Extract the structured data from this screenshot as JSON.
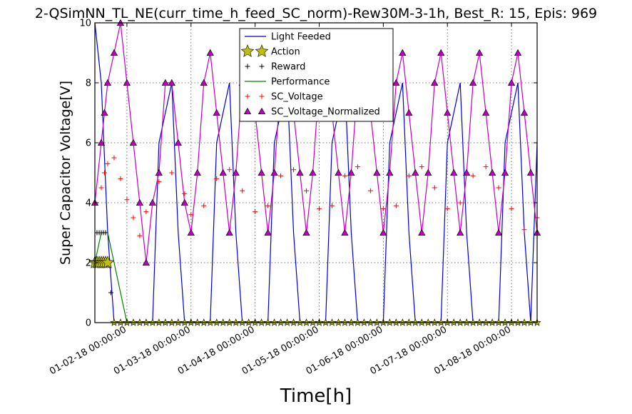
{
  "chart_data": {
    "type": "line",
    "title": "2-QSimNN_TL_NE(curr_time_h_feed_SC_norm)-Rew30M-3-1h, Best_R: 15, Epis: 969",
    "xlabel": "Time[h]",
    "ylabel": "Super Capacitor Voltage[V]",
    "ylim": [
      0,
      10
    ],
    "xlim": [
      0,
      69
    ],
    "yticks": [
      0,
      2,
      4,
      6,
      8,
      10
    ],
    "xticks": [
      {
        "x": 5,
        "label": "01-02-18 00:00:00"
      },
      {
        "x": 15,
        "label": "01-03-18 00:00:00"
      },
      {
        "x": 25,
        "label": "01-04-18 00:00:00"
      },
      {
        "x": 35,
        "label": "01-05-18 00:00:00"
      },
      {
        "x": 45,
        "label": "01-06-18 00:00:00"
      },
      {
        "x": 55,
        "label": "01-07-18 00:00:00"
      },
      {
        "x": 65,
        "label": "01-08-18 00:00:00"
      }
    ],
    "grid": true,
    "legend_position": "top-center",
    "series": [
      {
        "name": "Light Feeded",
        "color": "#0000cc",
        "marker": "none",
        "x": [
          0,
          1,
          2,
          3,
          4,
          5,
          6,
          7,
          8,
          9,
          10,
          11,
          12,
          13,
          14,
          15,
          16,
          17,
          18,
          19,
          20,
          21,
          22,
          23,
          24,
          25,
          26,
          27,
          28,
          29,
          30,
          31,
          32,
          33,
          34,
          35,
          36,
          37,
          38,
          39,
          40,
          41,
          42,
          43,
          44,
          45,
          46,
          47,
          48,
          49,
          50,
          51,
          52,
          53,
          54,
          55,
          56,
          57,
          58,
          59,
          60,
          61,
          62,
          63,
          64,
          65,
          66,
          67,
          68,
          69
        ],
        "y": [
          10,
          8,
          3,
          0,
          0,
          0,
          0,
          0,
          0,
          0,
          6,
          7,
          8,
          3,
          0,
          0,
          0,
          0,
          0,
          6,
          7,
          8,
          3,
          0,
          0,
          0,
          0,
          0,
          6,
          7,
          8,
          3,
          0,
          0,
          0,
          0,
          0,
          6,
          7,
          8,
          3,
          0,
          0,
          0,
          0,
          0,
          6,
          7,
          8,
          3,
          0,
          0,
          0,
          0,
          0,
          6,
          7,
          8,
          3,
          0,
          0,
          0,
          0,
          0,
          6,
          7,
          8,
          3,
          0,
          6
        ]
      },
      {
        "name": "Action",
        "color": "#c0c000",
        "marker": "star",
        "x": [
          0,
          0.33,
          0.67,
          1,
          1.33,
          1.67,
          2,
          3,
          4,
          5,
          6,
          7,
          8,
          9,
          10,
          11,
          12,
          13,
          14,
          15,
          16,
          17,
          18,
          19,
          20,
          21,
          22,
          23,
          24,
          25,
          26,
          27,
          28,
          29,
          30,
          31,
          32,
          33,
          34,
          35,
          36,
          37,
          38,
          39,
          40,
          41,
          42,
          43,
          44,
          45,
          46,
          47,
          48,
          49,
          50,
          51,
          52,
          53,
          54,
          55,
          56,
          57,
          58,
          59,
          60,
          61,
          62,
          63,
          64,
          65,
          66,
          67,
          68,
          69
        ],
        "y": [
          2,
          2,
          2,
          2,
          2,
          2,
          2,
          0,
          0,
          0,
          0,
          0,
          0,
          0,
          0,
          0,
          0,
          0,
          0,
          0,
          0,
          0,
          0,
          0,
          0,
          0,
          0,
          0,
          0,
          0,
          0,
          0,
          0,
          0,
          0,
          0,
          0,
          0,
          0,
          0,
          0,
          0,
          0,
          0,
          0,
          0,
          0,
          0,
          0,
          0,
          0,
          0,
          0,
          0,
          0,
          0,
          0,
          0,
          0,
          0,
          0,
          0,
          0,
          0,
          0,
          0,
          0,
          0,
          0,
          0,
          0,
          0,
          0,
          0
        ]
      },
      {
        "name": "Reward",
        "color": "#000000",
        "marker": "plus",
        "x": [
          0,
          0.33,
          0.67,
          1,
          1.33,
          1.67,
          2,
          2.5
        ],
        "y": [
          2,
          3,
          3,
          3,
          3,
          3,
          2,
          1
        ]
      },
      {
        "name": "Performance",
        "color": "#008000",
        "marker": "none",
        "x": [
          0,
          1,
          2,
          3,
          4,
          5,
          69
        ],
        "y": [
          2,
          3,
          3,
          2,
          1,
          0,
          0
        ]
      },
      {
        "name": "SC_Voltage",
        "color": "#ff0000",
        "marker": "plus",
        "x": [
          0,
          1,
          1.5,
          2,
          3,
          4,
          5,
          6,
          7,
          8,
          10,
          12,
          14,
          15,
          17,
          19,
          21,
          23,
          25,
          27,
          29,
          31,
          33,
          35,
          37,
          39,
          41,
          43,
          45,
          47,
          49,
          51,
          53,
          55,
          57,
          59,
          61,
          63,
          65,
          67,
          69
        ],
        "y": [
          4,
          4.5,
          5,
          5.3,
          5.5,
          4.8,
          4.1,
          3.5,
          2.9,
          3.7,
          4.7,
          5,
          4.3,
          3.6,
          3.9,
          4.8,
          5.1,
          4.4,
          3.7,
          3.9,
          4.9,
          5.1,
          4.4,
          3.8,
          3.9,
          4.9,
          5.2,
          4.4,
          3.8,
          3.9,
          4.9,
          5.2,
          4.5,
          3.8,
          4,
          4.9,
          5.2,
          4.5,
          3.8,
          3.1,
          3.5
        ]
      },
      {
        "name": "SC_Voltage_Normalized",
        "color": "#c000c0",
        "marker": "triangle",
        "x": [
          0,
          1,
          1.5,
          2,
          3,
          4,
          5,
          6,
          7,
          8,
          9,
          10,
          11,
          12,
          13,
          14,
          15,
          16,
          17,
          18,
          19,
          20,
          21,
          22,
          23,
          24,
          25,
          26,
          27,
          28,
          29,
          30,
          31,
          32,
          33,
          34,
          35,
          36,
          37,
          38,
          39,
          40,
          41,
          42,
          43,
          44,
          45,
          46,
          47,
          48,
          49,
          50,
          51,
          52,
          53,
          54,
          55,
          56,
          57,
          58,
          59,
          60,
          61,
          62,
          63,
          64,
          65,
          66,
          67,
          68,
          69
        ],
        "y": [
          4,
          6,
          7,
          8,
          9,
          10,
          8,
          6,
          4,
          2,
          4,
          5,
          8,
          8,
          6,
          4,
          3,
          5,
          8,
          9,
          7,
          5,
          3,
          5,
          8,
          9,
          7,
          5,
          3,
          5,
          8,
          9,
          7,
          5,
          3,
          5,
          8,
          9,
          7,
          5,
          3,
          5,
          8,
          9,
          7,
          5,
          3,
          5,
          8,
          9,
          7,
          5,
          3,
          5,
          8,
          9,
          7,
          5,
          3,
          5,
          8,
          9,
          7,
          5,
          3,
          5,
          8,
          9,
          7,
          5,
          3
        ]
      }
    ]
  }
}
